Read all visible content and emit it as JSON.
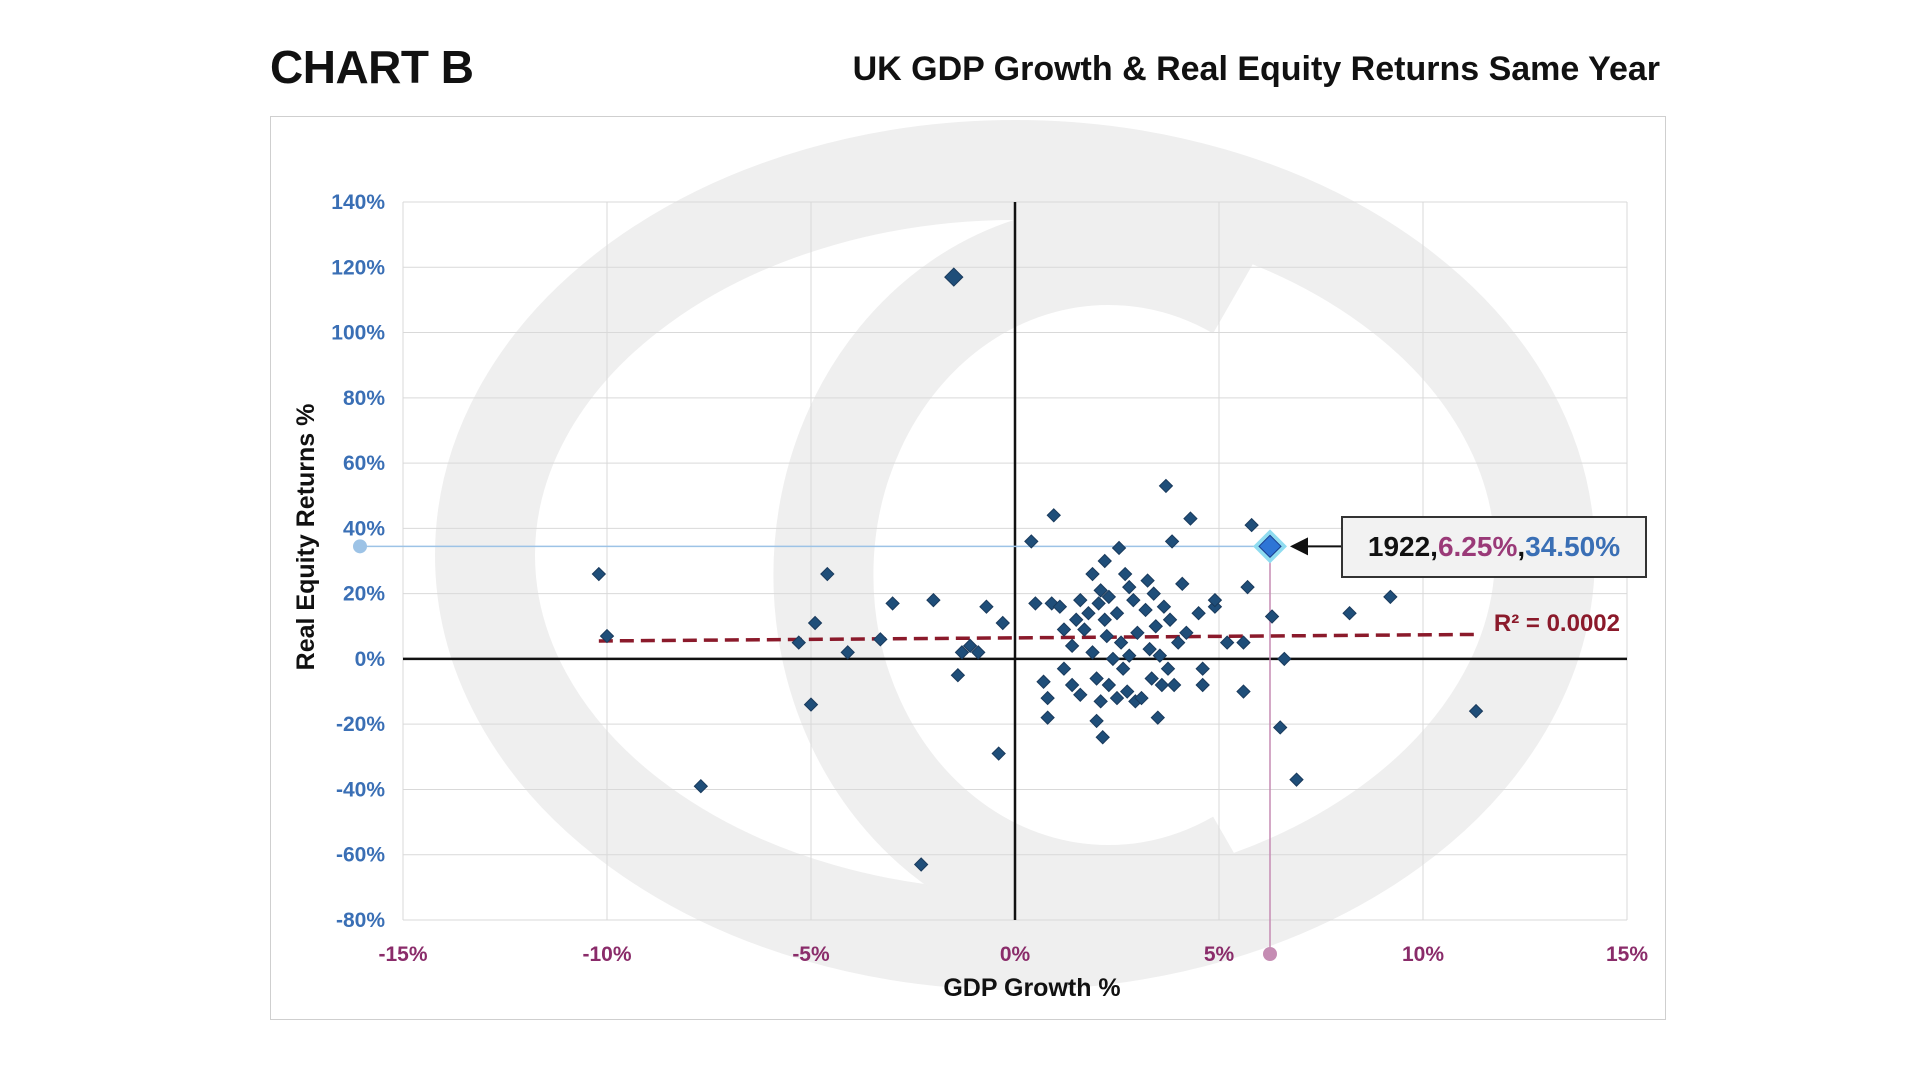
{
  "header": {
    "chart_label": "CHART B",
    "title": "UK GDP Growth & Real Equity Returns Same Year"
  },
  "colors": {
    "point": "#1f4e79",
    "highlight": "#2e75d6",
    "trend": "#8b1a2b",
    "x_guide": "#c58cb3",
    "y_guide": "#9dc3e6"
  },
  "annotation": {
    "year": "1922",
    "sep1": ", ",
    "x_value": "6.25%",
    "sep2": ", ",
    "y_value": "34.50%"
  },
  "trendline": {
    "label": "R² = 0.0002",
    "x_range": [
      -10.2,
      11.3
    ],
    "y_start": 5.5,
    "y_end": 7.5
  },
  "chart_data": {
    "type": "scatter",
    "title": "UK GDP Growth & Real Equity Returns Same Year",
    "xlabel": "GDP Growth %",
    "ylabel": "Real Equity Returns %",
    "xlim": [
      -15,
      15
    ],
    "ylim": [
      -80,
      140
    ],
    "x_ticks": [
      "-15%",
      "-10%",
      "-5%",
      "0%",
      "5%",
      "10%",
      "15%"
    ],
    "y_ticks": [
      "140%",
      "120%",
      "100%",
      "80%",
      "60%",
      "40%",
      "20%",
      "0%",
      "-20%",
      "-40%",
      "-60%",
      "-80%"
    ],
    "grid": true,
    "highlight": {
      "x": 6.25,
      "y": 34.5
    },
    "points": [
      {
        "x": -1.5,
        "y": 117
      },
      {
        "x": -10.2,
        "y": 26
      },
      {
        "x": -10.0,
        "y": 7
      },
      {
        "x": -7.7,
        "y": -39
      },
      {
        "x": -5.3,
        "y": 5
      },
      {
        "x": -5.0,
        "y": -14
      },
      {
        "x": -4.9,
        "y": 11
      },
      {
        "x": -4.6,
        "y": 26
      },
      {
        "x": -4.1,
        "y": 2
      },
      {
        "x": -3.3,
        "y": 6
      },
      {
        "x": -3.0,
        "y": 17
      },
      {
        "x": -2.3,
        "y": -63
      },
      {
        "x": -2.0,
        "y": 18
      },
      {
        "x": -1.4,
        "y": -5
      },
      {
        "x": -1.3,
        "y": 2
      },
      {
        "x": -1.1,
        "y": 4
      },
      {
        "x": -0.9,
        "y": 2
      },
      {
        "x": -0.7,
        "y": 16
      },
      {
        "x": -0.4,
        "y": -29
      },
      {
        "x": -0.3,
        "y": 11
      },
      {
        "x": 0.4,
        "y": 36
      },
      {
        "x": 0.5,
        "y": 17
      },
      {
        "x": 0.7,
        "y": -7
      },
      {
        "x": 0.8,
        "y": -12
      },
      {
        "x": 0.8,
        "y": -18
      },
      {
        "x": 0.9,
        "y": 17
      },
      {
        "x": 0.95,
        "y": 44
      },
      {
        "x": 1.1,
        "y": 16
      },
      {
        "x": 1.2,
        "y": 9
      },
      {
        "x": 1.2,
        "y": -3
      },
      {
        "x": 1.4,
        "y": 4
      },
      {
        "x": 1.4,
        "y": -8
      },
      {
        "x": 1.5,
        "y": 12
      },
      {
        "x": 1.6,
        "y": 18
      },
      {
        "x": 1.6,
        "y": -11
      },
      {
        "x": 1.7,
        "y": 9
      },
      {
        "x": 1.8,
        "y": 14
      },
      {
        "x": 1.9,
        "y": 26
      },
      {
        "x": 1.9,
        "y": 2
      },
      {
        "x": 2.0,
        "y": -6
      },
      {
        "x": 2.0,
        "y": -19
      },
      {
        "x": 2.05,
        "y": 17
      },
      {
        "x": 2.1,
        "y": -13
      },
      {
        "x": 2.1,
        "y": 21
      },
      {
        "x": 2.15,
        "y": -24
      },
      {
        "x": 2.2,
        "y": 12
      },
      {
        "x": 2.2,
        "y": 30
      },
      {
        "x": 2.25,
        "y": 7
      },
      {
        "x": 2.3,
        "y": -8
      },
      {
        "x": 2.3,
        "y": 19
      },
      {
        "x": 2.4,
        "y": 0
      },
      {
        "x": 2.5,
        "y": 14
      },
      {
        "x": 2.5,
        "y": -12
      },
      {
        "x": 2.55,
        "y": 34
      },
      {
        "x": 2.6,
        "y": 5
      },
      {
        "x": 2.65,
        "y": -3
      },
      {
        "x": 2.7,
        "y": 26
      },
      {
        "x": 2.75,
        "y": -10
      },
      {
        "x": 2.8,
        "y": 22
      },
      {
        "x": 2.8,
        "y": 1
      },
      {
        "x": 2.9,
        "y": 18
      },
      {
        "x": 2.95,
        "y": -13
      },
      {
        "x": 3.0,
        "y": 8
      },
      {
        "x": 3.1,
        "y": -12
      },
      {
        "x": 3.2,
        "y": 15
      },
      {
        "x": 3.25,
        "y": 24
      },
      {
        "x": 3.3,
        "y": 3
      },
      {
        "x": 3.35,
        "y": -6
      },
      {
        "x": 3.4,
        "y": 20
      },
      {
        "x": 3.45,
        "y": 10
      },
      {
        "x": 3.5,
        "y": -18
      },
      {
        "x": 3.55,
        "y": 1
      },
      {
        "x": 3.6,
        "y": -8
      },
      {
        "x": 3.65,
        "y": 16
      },
      {
        "x": 3.7,
        "y": 53
      },
      {
        "x": 3.75,
        "y": -3
      },
      {
        "x": 3.8,
        "y": 12
      },
      {
        "x": 3.85,
        "y": 36
      },
      {
        "x": 3.9,
        "y": -8
      },
      {
        "x": 4.0,
        "y": 5
      },
      {
        "x": 4.1,
        "y": 23
      },
      {
        "x": 4.2,
        "y": 8
      },
      {
        "x": 4.3,
        "y": 43
      },
      {
        "x": 4.5,
        "y": 14
      },
      {
        "x": 4.6,
        "y": -3
      },
      {
        "x": 4.6,
        "y": -8
      },
      {
        "x": 4.9,
        "y": 16
      },
      {
        "x": 4.9,
        "y": 18
      },
      {
        "x": 5.2,
        "y": 5
      },
      {
        "x": 5.6,
        "y": 5
      },
      {
        "x": 5.6,
        "y": -10
      },
      {
        "x": 5.7,
        "y": 22
      },
      {
        "x": 5.8,
        "y": 41
      },
      {
        "x": 6.3,
        "y": 13
      },
      {
        "x": 6.5,
        "y": -21
      },
      {
        "x": 6.6,
        "y": 0
      },
      {
        "x": 6.9,
        "y": -37
      },
      {
        "x": 8.2,
        "y": 14
      },
      {
        "x": 9.2,
        "y": 19
      },
      {
        "x": 11.3,
        "y": -16
      }
    ]
  }
}
